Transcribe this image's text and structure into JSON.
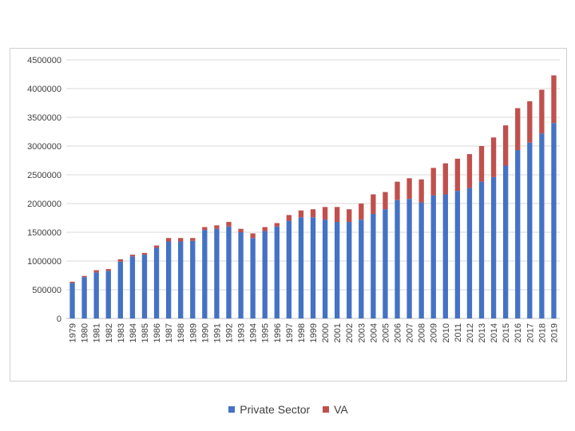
{
  "chart_data": {
    "type": "bar",
    "stacked": true,
    "categories": [
      "1979",
      "1980",
      "1981",
      "1982",
      "1983",
      "1984",
      "1985",
      "1986",
      "1987",
      "1988",
      "1989",
      "1990",
      "1991",
      "1992",
      "1993",
      "1994",
      "1995",
      "1996",
      "1997",
      "1998",
      "1999",
      "2000",
      "2001",
      "2002",
      "2003",
      "2004",
      "2005",
      "2006",
      "2007",
      "2008",
      "2009",
      "2010",
      "2011",
      "2012",
      "2013",
      "2014",
      "2015",
      "2016",
      "2017",
      "2018",
      "2019"
    ],
    "series": [
      {
        "name": "Private Sector",
        "color": "#4472c4",
        "values": [
          620000,
          720000,
          800000,
          830000,
          990000,
          1080000,
          1110000,
          1230000,
          1340000,
          1340000,
          1350000,
          1540000,
          1560000,
          1600000,
          1500000,
          1400000,
          1520000,
          1600000,
          1700000,
          1760000,
          1760000,
          1720000,
          1680000,
          1680000,
          1720000,
          1820000,
          1900000,
          2060000,
          2080000,
          2020000,
          2140000,
          2160000,
          2220000,
          2270000,
          2380000,
          2460000,
          2660000,
          2930000,
          3060000,
          3220000,
          3400000
        ]
      },
      {
        "name": "VA",
        "color": "#c0504d",
        "values": [
          20000,
          20000,
          40000,
          30000,
          40000,
          30000,
          30000,
          40000,
          60000,
          60000,
          50000,
          50000,
          60000,
          80000,
          60000,
          80000,
          70000,
          60000,
          100000,
          120000,
          140000,
          220000,
          260000,
          220000,
          280000,
          340000,
          300000,
          320000,
          360000,
          400000,
          480000,
          540000,
          560000,
          590000,
          620000,
          690000,
          700000,
          730000,
          720000,
          760000,
          830000
        ]
      }
    ],
    "title": "",
    "xlabel": "",
    "ylabel": "",
    "ylim": [
      0,
      4500000
    ],
    "yticks": [
      "0",
      "500000",
      "1000000",
      "1500000",
      "2000000",
      "2500000",
      "3000000",
      "3500000",
      "4000000",
      "4500000"
    ],
    "grid": true,
    "legend_position": "bottom"
  }
}
